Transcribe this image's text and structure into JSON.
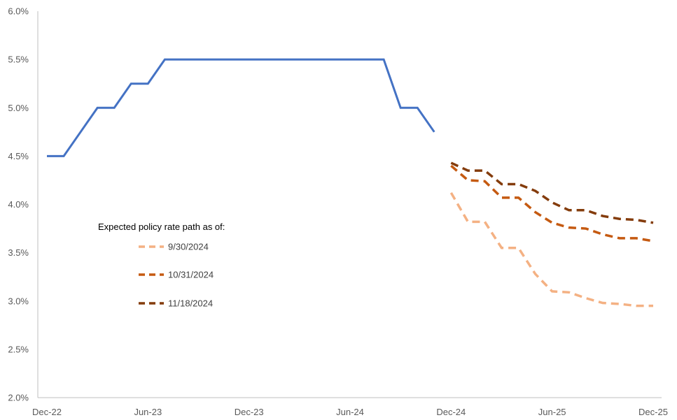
{
  "chart_data": {
    "type": "line",
    "title": "",
    "xlabel": "",
    "ylabel": "",
    "ylim": [
      0.02,
      0.06
    ],
    "y_ticks": [
      "2.0%",
      "2.5%",
      "3.0%",
      "3.5%",
      "4.0%",
      "4.5%",
      "5.0%",
      "5.5%",
      "6.0%"
    ],
    "x_ticks": [
      "Dec-22",
      "Jun-23",
      "Dec-23",
      "Jun-24",
      "Dec-24",
      "Jun-25",
      "Dec-25"
    ],
    "x_range": [
      "2022-12",
      "2025-12"
    ],
    "grid": false,
    "legend": {
      "title": "Expected policy rate path as of:",
      "placement": "center-left",
      "entries": [
        "9/30/2024",
        "10/31/2024",
        "11/18/2024"
      ]
    },
    "series": [
      {
        "name": "",
        "style": "solid",
        "color": "#4472C4",
        "x": [
          "2022-12",
          "2023-01",
          "2023-02",
          "2023-03",
          "2023-04",
          "2023-05",
          "2023-06",
          "2023-07",
          "2023-08",
          "2023-09",
          "2023-10",
          "2023-11",
          "2023-12",
          "2024-01",
          "2024-02",
          "2024-03",
          "2024-04",
          "2024-05",
          "2024-06",
          "2024-07",
          "2024-08",
          "2024-09",
          "2024-10",
          "2024-11"
        ],
        "values": [
          0.045,
          0.045,
          0.0475,
          0.05,
          0.05,
          0.0525,
          0.0525,
          0.055,
          0.055,
          0.055,
          0.055,
          0.055,
          0.055,
          0.055,
          0.055,
          0.055,
          0.055,
          0.055,
          0.055,
          0.055,
          0.055,
          0.05,
          0.05,
          0.0475
        ]
      },
      {
        "name": "9/30/2024",
        "style": "dashed",
        "color": "#F4B183",
        "x": [
          "2024-12",
          "2025-01",
          "2025-02",
          "2025-03",
          "2025-04",
          "2025-05",
          "2025-06",
          "2025-07",
          "2025-08",
          "2025-09",
          "2025-10",
          "2025-11",
          "2025-12"
        ],
        "values": [
          0.0412,
          0.0382,
          0.0382,
          0.0355,
          0.0355,
          0.0328,
          0.031,
          0.0309,
          0.0303,
          0.0298,
          0.0297,
          0.0295,
          0.0295
        ]
      },
      {
        "name": "10/31/2024",
        "style": "dashed",
        "color": "#C55A11",
        "x": [
          "2024-12",
          "2025-01",
          "2025-02",
          "2025-03",
          "2025-04",
          "2025-05",
          "2025-06",
          "2025-07",
          "2025-08",
          "2025-09",
          "2025-10",
          "2025-11",
          "2025-12"
        ],
        "values": [
          0.044,
          0.0425,
          0.0424,
          0.0407,
          0.0407,
          0.0392,
          0.0381,
          0.0376,
          0.0375,
          0.0369,
          0.0365,
          0.0365,
          0.0362
        ]
      },
      {
        "name": "11/18/2024",
        "style": "dashed",
        "color": "#843C0C",
        "x": [
          "2024-12",
          "2025-01",
          "2025-02",
          "2025-03",
          "2025-04",
          "2025-05",
          "2025-06",
          "2025-07",
          "2025-08",
          "2025-09",
          "2025-10",
          "2025-11",
          "2025-12"
        ],
        "values": [
          0.0443,
          0.0435,
          0.0435,
          0.0421,
          0.0421,
          0.0414,
          0.0402,
          0.0394,
          0.0394,
          0.0388,
          0.0385,
          0.0384,
          0.0381
        ]
      }
    ]
  }
}
